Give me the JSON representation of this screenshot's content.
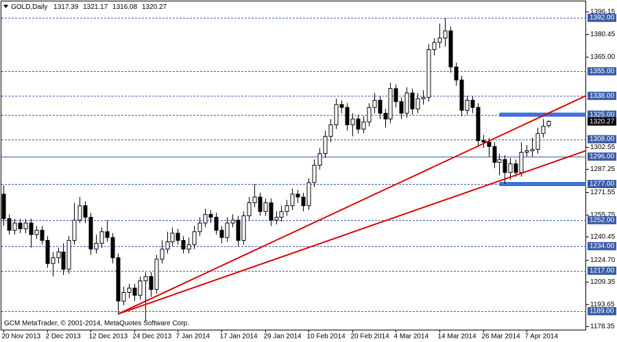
{
  "chart_data": {
    "type": "candlestick",
    "symbol": "GOLD,Daily",
    "footer": "GCM MetaTrader, © 2001-2014, MetaQuotes Software Corp.",
    "categories": [
      "20 Nov 2013",
      null,
      null,
      null,
      null,
      null,
      null,
      null,
      "2 Dec 2013",
      null,
      null,
      null,
      null,
      null,
      null,
      null,
      "12 Dec 2013",
      null,
      null,
      null,
      null,
      null,
      null,
      null,
      "24 Dec 2013",
      null,
      null,
      null,
      null,
      null,
      null,
      null,
      "7 Jan 2014",
      null,
      null,
      null,
      null,
      null,
      null,
      null,
      "17 Jan 2014",
      null,
      null,
      null,
      null,
      null,
      null,
      null,
      "29 Jan 2014",
      null,
      null,
      null,
      null,
      null,
      null,
      null,
      "10 Feb 2014",
      null,
      null,
      null,
      null,
      null,
      null,
      null,
      "20 Feb 2014",
      null,
      null,
      null,
      null,
      null,
      null,
      null,
      "4 Mar 2014",
      null,
      null,
      null,
      null,
      null,
      null,
      null,
      "14 Mar 2014",
      null,
      null,
      null,
      null,
      null,
      null,
      null,
      "26 Mar 2014",
      null,
      null,
      null,
      null,
      null,
      null,
      null,
      "7 Apr 2014",
      null,
      null,
      null,
      null
    ],
    "open": [
      1270,
      1253,
      1245,
      1250,
      1246,
      1250,
      1242,
      1245,
      1238,
      1222,
      1226,
      1230,
      1218,
      1238,
      1252,
      1262,
      1254,
      1232,
      1236,
      1244,
      1240,
      1226,
      1196,
      1202,
      1205,
      1200,
      1210,
      1213,
      1204,
      1225,
      1232,
      1237,
      1243,
      1238,
      1232,
      1235,
      1244,
      1250,
      1256,
      1254,
      1245,
      1240,
      1250,
      1252,
      1238,
      1255,
      1264,
      1268,
      1258,
      1264,
      1252,
      1254,
      1258,
      1262,
      1270,
      1268,
      1262,
      1278,
      1290,
      1298,
      1310,
      1318,
      1332,
      1330,
      1318,
      1322,
      1315,
      1320,
      1330,
      1335,
      1326,
      1322,
      1343,
      1334,
      1326,
      1340,
      1329,
      1336,
      1337,
      1370,
      1375,
      1378,
      1383,
      1358,
      1349,
      1328,
      1335,
      1330,
      1307,
      1306,
      1303,
      1292,
      1294,
      1285,
      1291,
      1285,
      1299,
      1300,
      1301,
      1312,
      1317.39
    ],
    "high": [
      1276,
      1256,
      1253,
      1253,
      1253,
      1253,
      1248,
      1248,
      1241,
      1230,
      1233,
      1236,
      1241,
      1264,
      1268,
      1265,
      1257,
      1242,
      1247,
      1252,
      1243,
      1229,
      1206,
      1208,
      1208,
      1213,
      1216,
      1216,
      1228,
      1238,
      1244,
      1247,
      1246,
      1241,
      1240,
      1248,
      1254,
      1260,
      1259,
      1257,
      1248,
      1254,
      1256,
      1255,
      1258,
      1268,
      1277,
      1271,
      1267,
      1267,
      1258,
      1262,
      1266,
      1274,
      1273,
      1271,
      1281,
      1294,
      1302,
      1314,
      1322,
      1336,
      1335,
      1333,
      1326,
      1325,
      1324,
      1333,
      1340,
      1338,
      1329,
      1347,
      1346,
      1337,
      1344,
      1343,
      1340,
      1342,
      1374,
      1378,
      1388,
      1392,
      1386,
      1361,
      1352,
      1338,
      1338,
      1333,
      1311,
      1309,
      1306,
      1298,
      1297,
      1295,
      1294,
      1306,
      1304,
      1309,
      1316,
      1322,
      1321.17
    ],
    "low": [
      1248,
      1242,
      1242,
      1243,
      1243,
      1233,
      1239,
      1235,
      1219,
      1213,
      1222,
      1214,
      1215,
      1235,
      1250,
      1250,
      1228,
      1229,
      1233,
      1237,
      1222,
      1187,
      1193,
      1198,
      1196,
      1197,
      1182,
      1199,
      1201,
      1222,
      1229,
      1234,
      1235,
      1229,
      1229,
      1232,
      1241,
      1247,
      1250,
      1242,
      1236,
      1237,
      1247,
      1234,
      1235,
      1252,
      1261,
      1255,
      1255,
      1248,
      1249,
      1251,
      1255,
      1259,
      1264,
      1258,
      1259,
      1275,
      1287,
      1295,
      1306,
      1315,
      1326,
      1314,
      1310,
      1312,
      1312,
      1317,
      1326,
      1322,
      1316,
      1319,
      1330,
      1322,
      1323,
      1325,
      1326,
      1332,
      1334,
      1366,
      1371,
      1372,
      1354,
      1345,
      1324,
      1325,
      1326,
      1303,
      1302,
      1296,
      1288,
      1283,
      1277,
      1280,
      1282,
      1282,
      1296,
      1296,
      1298,
      1309,
      1316.08
    ],
    "close": [
      1253,
      1245,
      1250,
      1246,
      1250,
      1242,
      1245,
      1238,
      1222,
      1226,
      1230,
      1218,
      1238,
      1252,
      1262,
      1254,
      1232,
      1236,
      1244,
      1240,
      1226,
      1196,
      1202,
      1205,
      1200,
      1210,
      1213,
      1204,
      1225,
      1232,
      1237,
      1243,
      1238,
      1232,
      1235,
      1244,
      1250,
      1256,
      1254,
      1245,
      1240,
      1250,
      1252,
      1238,
      1255,
      1264,
      1268,
      1258,
      1264,
      1252,
      1254,
      1258,
      1262,
      1270,
      1268,
      1262,
      1278,
      1290,
      1298,
      1310,
      1318,
      1332,
      1330,
      1318,
      1322,
      1315,
      1320,
      1330,
      1335,
      1326,
      1322,
      1343,
      1334,
      1326,
      1340,
      1329,
      1336,
      1337,
      1370,
      1375,
      1378,
      1383,
      1358,
      1349,
      1328,
      1335,
      1330,
      1307,
      1306,
      1303,
      1292,
      1294,
      1285,
      1291,
      1285,
      1299,
      1300,
      1301,
      1312,
      1317,
      1320.27
    ],
    "ylim": [
      1176.2,
      1403.4
    ],
    "yticks": [
      {
        "value": 1396.15,
        "label": "1396.15"
      },
      {
        "value": 1380.45,
        "label": "1380.45"
      },
      {
        "value": 1365,
        "label": "1365.00"
      },
      {
        "value": 1302.55,
        "label": "1302.55"
      },
      {
        "value": 1287.25,
        "label": "1287.25"
      },
      {
        "value": 1271.55,
        "label": "1271.55"
      },
      {
        "value": 1255.75,
        "label": "1255.75"
      },
      {
        "value": 1240.45,
        "label": "1240.45"
      },
      {
        "value": 1224.7,
        "label": "1224.70"
      },
      {
        "value": 1209.35,
        "label": "1209.35"
      },
      {
        "value": 1193.65,
        "label": "1193.65"
      },
      {
        "value": 1178.35,
        "label": "1178.35"
      }
    ],
    "levels": [
      {
        "value": 1392,
        "label": "1392.00"
      },
      {
        "value": 1355,
        "label": "1355.00"
      },
      {
        "value": 1338,
        "label": "1338.00"
      },
      {
        "value": 1325,
        "label": "1325.00"
      },
      {
        "value": 1308,
        "label": "1308.00"
      },
      {
        "value": 1296,
        "label": "1296.00",
        "style": "solid"
      },
      {
        "value": 1277,
        "label": "1277.00"
      },
      {
        "value": 1252,
        "label": "1252.00"
      },
      {
        "value": 1234,
        "label": "1234.00"
      },
      {
        "value": 1217,
        "label": "1217.00"
      },
      {
        "value": 1189,
        "label": "1189.00"
      }
    ],
    "trendlines": [
      {
        "x": [
          21,
          100
        ],
        "y": [
          1187,
          1326
        ]
      },
      {
        "x": [
          21,
          100
        ],
        "y": [
          1187,
          1291
        ]
      }
    ],
    "zones": [
      {
        "value": 1325,
        "from": 91
      },
      {
        "value": 1277,
        "from": 91
      }
    ],
    "up_color": "#ffffff",
    "down_color": "#000000",
    "level_color": "#3a5ca8",
    "trendline_color": "#e00000",
    "zone_color": "#3f6fd8"
  }
}
